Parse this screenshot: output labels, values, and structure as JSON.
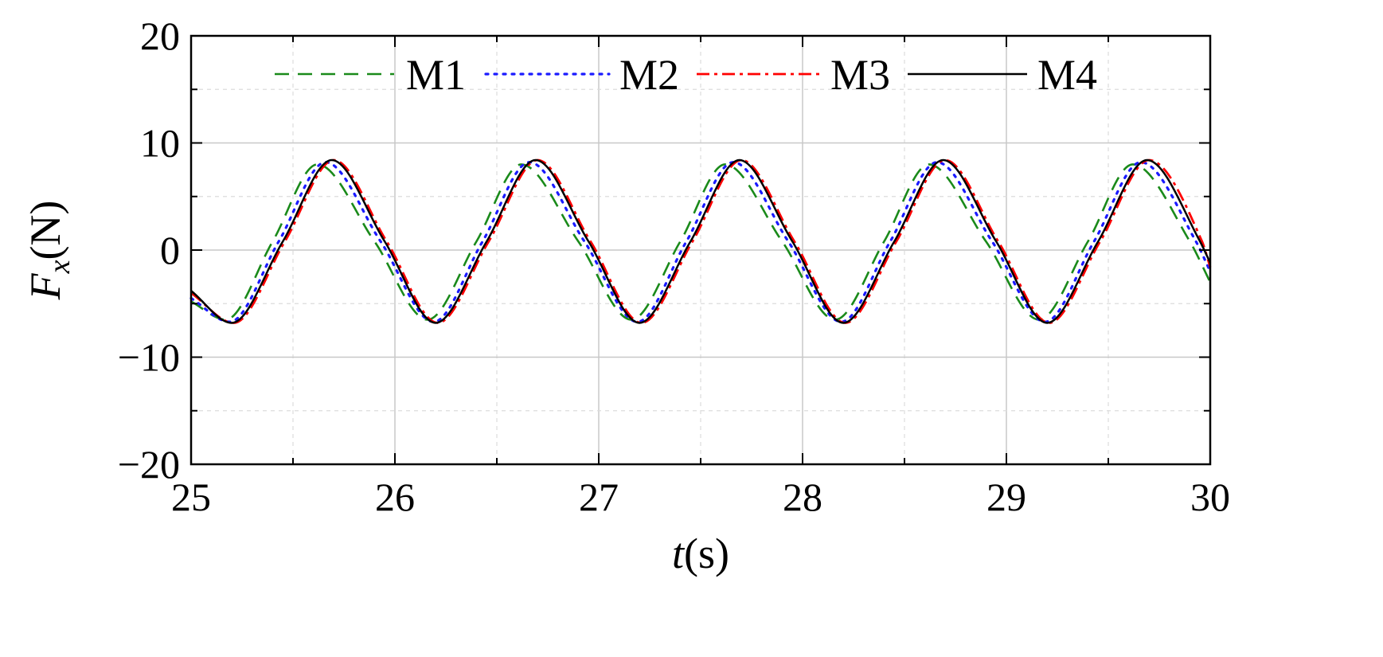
{
  "chart_data": {
    "type": "line",
    "xlabel": {
      "main": "t",
      "unit": "(s)"
    },
    "ylabel": {
      "main": "F",
      "sub": "x",
      "unit": "(N)"
    },
    "xlim": [
      25,
      30
    ],
    "ylim": [
      -20,
      20
    ],
    "x_ticks": [
      25,
      26,
      27,
      28,
      29,
      30
    ],
    "y_ticks": [
      -20,
      -10,
      0,
      10,
      20
    ],
    "y_tick_labels": [
      "−20",
      "−10",
      "0",
      "10",
      "20"
    ],
    "grid": true,
    "legend_position": "top",
    "series": [
      {
        "name": "M1",
        "color": "#1a8a1a",
        "style": "dashed",
        "x": [
          25.0,
          25.17,
          25.4,
          25.62,
          25.9,
          26.16,
          26.4,
          26.62,
          26.9,
          27.16,
          27.4,
          27.62,
          27.9,
          28.16,
          28.4,
          28.62,
          28.9,
          29.16,
          29.4,
          29.62,
          29.9,
          30.0
        ],
        "y": [
          -4.8,
          -6.5,
          0.8,
          8.0,
          0.8,
          -6.5,
          0.8,
          8.0,
          0.8,
          -6.5,
          0.8,
          8.0,
          0.8,
          -6.5,
          0.8,
          8.0,
          0.8,
          -6.5,
          0.8,
          8.0,
          0.8,
          -3.0
        ]
      },
      {
        "name": "M2",
        "color": "#1a1aff",
        "style": "dotted",
        "x": [
          25.0,
          25.19,
          25.43,
          25.66,
          25.93,
          26.19,
          26.43,
          26.66,
          26.93,
          27.19,
          27.43,
          27.66,
          27.93,
          28.19,
          28.43,
          28.66,
          28.93,
          29.19,
          29.43,
          29.66,
          29.93,
          30.0
        ],
        "y": [
          -4.5,
          -6.7,
          0.8,
          8.2,
          0.8,
          -6.7,
          0.8,
          8.2,
          0.8,
          -6.7,
          0.8,
          8.2,
          0.8,
          -6.7,
          0.8,
          8.2,
          0.8,
          -6.7,
          0.8,
          8.2,
          0.8,
          -2.0
        ]
      },
      {
        "name": "M3",
        "color": "#ff0000",
        "style": "dashdot",
        "x": [
          25.0,
          25.21,
          25.46,
          25.7,
          25.96,
          26.21,
          26.46,
          26.7,
          26.96,
          27.21,
          27.46,
          27.7,
          27.96,
          28.21,
          28.46,
          28.7,
          28.96,
          29.21,
          29.46,
          29.7,
          29.96,
          30.0
        ],
        "y": [
          -4.0,
          -6.8,
          0.8,
          8.4,
          0.8,
          -6.8,
          0.8,
          8.4,
          0.8,
          -6.8,
          0.8,
          8.4,
          0.8,
          -6.8,
          0.8,
          8.4,
          0.8,
          -6.8,
          0.8,
          8.4,
          0.8,
          -1.6
        ]
      },
      {
        "name": "M4",
        "color": "#000000",
        "style": "solid",
        "x": [
          25.0,
          25.2,
          25.45,
          25.69,
          25.95,
          26.2,
          26.45,
          26.69,
          26.95,
          27.2,
          27.45,
          27.69,
          27.95,
          28.2,
          28.45,
          28.69,
          28.95,
          29.2,
          29.45,
          29.69,
          29.95,
          30.0
        ],
        "y": [
          -3.8,
          -6.8,
          0.8,
          8.4,
          0.8,
          -6.8,
          0.8,
          8.4,
          0.8,
          -6.8,
          0.8,
          8.4,
          0.8,
          -6.8,
          0.8,
          8.4,
          0.8,
          -6.8,
          0.8,
          8.4,
          0.8,
          -1.2
        ]
      }
    ]
  }
}
